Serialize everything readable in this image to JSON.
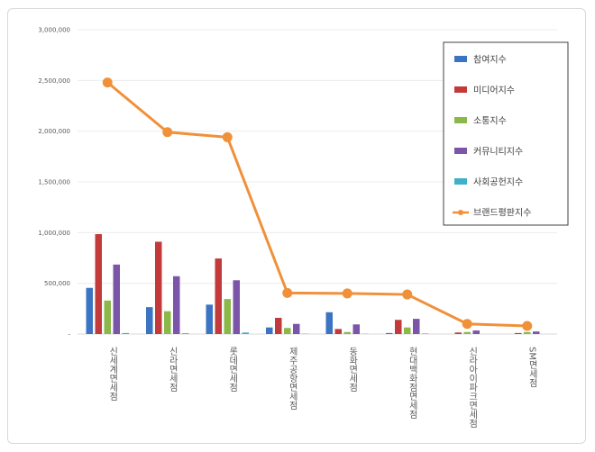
{
  "chart_data": {
    "type": "bar",
    "categories": [
      "신세계면세점",
      "신라면세점",
      "롯데면세점",
      "제주공항면세점",
      "동화면세점",
      "현대백화점면세점",
      "신라아이파크면세점",
      "SM면세점"
    ],
    "ylim": [
      0,
      3000000
    ],
    "yticks": [
      0,
      500000,
      1000000,
      1500000,
      2000000,
      2500000,
      3000000
    ],
    "ytick_labels": [
      "-",
      "500,000",
      "1,000,000",
      "1,500,000",
      "2,000,000",
      "2,500,000",
      "3,000,000"
    ],
    "grid": true,
    "legend_position": "right",
    "series": [
      {
        "name": "참여지수",
        "kind": "bar",
        "color": "#3a74c2",
        "values": [
          455000,
          265000,
          290000,
          65000,
          215000,
          10000,
          0,
          0
        ]
      },
      {
        "name": "미디어지수",
        "kind": "bar",
        "color": "#c23a3a",
        "values": [
          985000,
          910000,
          745000,
          160000,
          50000,
          140000,
          15000,
          10000
        ]
      },
      {
        "name": "소통지수",
        "kind": "bar",
        "color": "#8ab849",
        "values": [
          330000,
          225000,
          345000,
          60000,
          20000,
          65000,
          20000,
          20000
        ]
      },
      {
        "name": "커뮤니티지수",
        "kind": "bar",
        "color": "#7a55a8",
        "values": [
          685000,
          570000,
          530000,
          100000,
          95000,
          150000,
          35000,
          25000
        ]
      },
      {
        "name": "사회공헌지수",
        "kind": "bar",
        "color": "#3fb0c9",
        "values": [
          10000,
          8000,
          15000,
          3000,
          2000,
          5000,
          0,
          0
        ]
      },
      {
        "name": "브랜드평판지수",
        "kind": "line",
        "color": "#f0913a",
        "values": [
          2480000,
          1990000,
          1940000,
          405000,
          400000,
          390000,
          100000,
          80000
        ]
      }
    ]
  }
}
